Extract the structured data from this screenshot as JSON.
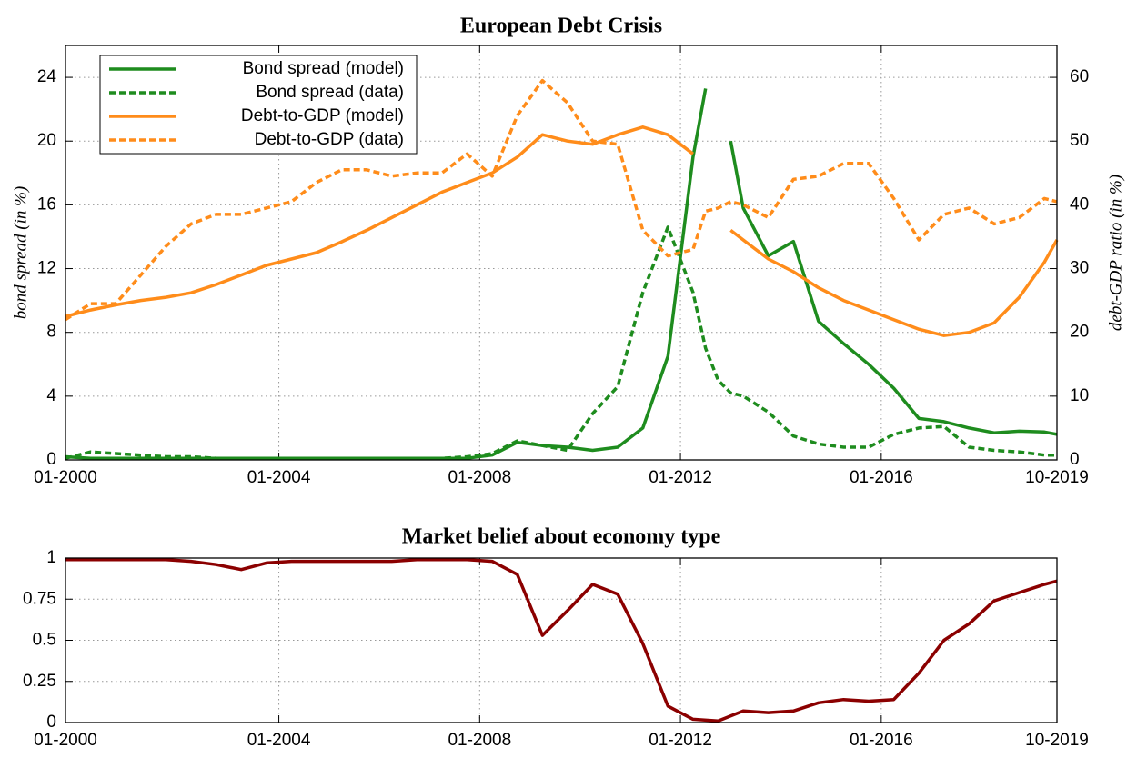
{
  "chart_data": [
    {
      "type": "line",
      "title": "European Debt Crisis",
      "ylabel": "bond spread (in %)",
      "y2label": "debt-GDP ratio (in %)",
      "x": [
        0,
        2,
        4,
        6,
        8,
        10,
        12,
        14,
        16,
        18,
        20,
        22,
        24,
        26,
        28,
        30,
        32,
        34,
        36,
        38,
        40,
        42,
        44,
        46,
        48,
        50,
        51,
        52,
        53,
        54,
        56,
        58,
        60,
        62,
        64,
        66,
        68,
        70,
        72,
        74,
        76,
        78,
        79
      ],
      "xlim": [
        0,
        79
      ],
      "xticks": [
        {
          "value": 0,
          "label": "01-2000"
        },
        {
          "value": 17,
          "label": "01-2004"
        },
        {
          "value": 33,
          "label": "01-2008"
        },
        {
          "value": 49,
          "label": "01-2012"
        },
        {
          "value": 65,
          "label": "01-2016"
        },
        {
          "value": 79,
          "label": "10-2019"
        }
      ],
      "ylim": [
        0,
        26
      ],
      "yticks": [
        0,
        4,
        8,
        12,
        16,
        20,
        24
      ],
      "y2lim": [
        0,
        65
      ],
      "y2ticks": [
        0,
        10,
        20,
        30,
        40,
        50,
        60
      ],
      "grid": true,
      "legend": "upper left",
      "series": [
        {
          "name": "Bond spread (model)",
          "color": "#1e8c1e",
          "dashed": false,
          "values": [
            0.2,
            0.1,
            0.1,
            0.1,
            0.1,
            0.1,
            0.1,
            0.1,
            0.1,
            0.1,
            0.1,
            0.1,
            0.1,
            0.1,
            0.1,
            0.1,
            0.1,
            0.3,
            1.1,
            0.9,
            0.8,
            0.6,
            0.8,
            2.0,
            6.5,
            19,
            23.3,
            null,
            20,
            15.8,
            12.8,
            13.7,
            8.7,
            7.3,
            6.0,
            4.5,
            2.6,
            2.4,
            2.0,
            1.7,
            1.8,
            1.75,
            1.6
          ]
        },
        {
          "name": "Bond spread (data)",
          "color": "#1e8c1e",
          "dashed": true,
          "values": [
            0.1,
            0.5,
            0.4,
            0.3,
            0.2,
            0.2,
            0.1,
            0.1,
            0.1,
            0.1,
            0.1,
            0.1,
            0.1,
            0.1,
            0.1,
            0.1,
            0.2,
            0.4,
            1.2,
            0.9,
            0.6,
            2.9,
            4.6,
            10.5,
            14.6,
            10.5,
            7,
            5,
            4.2,
            4.0,
            3.0,
            1.5,
            1.0,
            0.8,
            0.8,
            1.6,
            2.0,
            2.1,
            0.8,
            0.6,
            0.5,
            0.3,
            0.3
          ]
        },
        {
          "name": "Debt-to-GDP (model)",
          "color": "#ff8c1a",
          "dashed": false,
          "axis": "y2",
          "values": [
            22.5,
            23.5,
            24.3,
            25,
            25.5,
            26.2,
            27.5,
            29,
            30.5,
            31.5,
            32.5,
            34.2,
            36,
            38,
            40,
            42,
            43.5,
            45,
            47.5,
            51,
            50,
            49.5,
            51,
            52.2,
            51,
            48,
            null,
            null,
            36,
            34.5,
            31.5,
            29.5,
            27,
            25,
            23.5,
            22,
            20.5,
            19.5,
            20,
            21.5,
            25.5,
            31,
            34.5
          ]
        },
        {
          "name": "Debt-to-GDP (data)",
          "color": "#ff8c1a",
          "dashed": true,
          "axis": "y2",
          "values": [
            22,
            24.5,
            24.5,
            29,
            33.5,
            37,
            38.5,
            38.5,
            39.5,
            40.5,
            43.5,
            45.5,
            45.5,
            44.5,
            45,
            45,
            48,
            44.5,
            54,
            59.5,
            56,
            50,
            49.5,
            36,
            32,
            33,
            39,
            39.5,
            40.5,
            40,
            38,
            44,
            44.5,
            46.5,
            46.5,
            41,
            34.5,
            38.5,
            39.5,
            37,
            38,
            41,
            40.5
          ]
        }
      ]
    },
    {
      "type": "line",
      "title": "Market belief about economy type",
      "x": [
        0,
        2,
        4,
        6,
        8,
        10,
        12,
        14,
        16,
        18,
        20,
        22,
        24,
        26,
        28,
        30,
        32,
        34,
        36,
        38,
        40,
        42,
        44,
        46,
        48,
        50,
        52,
        54,
        56,
        58,
        60,
        62,
        64,
        66,
        68,
        70,
        72,
        74,
        76,
        78,
        79
      ],
      "xlim": [
        0,
        79
      ],
      "xticks": [
        {
          "value": 0,
          "label": "01-2000"
        },
        {
          "value": 17,
          "label": "01-2004"
        },
        {
          "value": 33,
          "label": "01-2008"
        },
        {
          "value": 49,
          "label": "01-2012"
        },
        {
          "value": 65,
          "label": "01-2016"
        },
        {
          "value": 79,
          "label": "10-2019"
        }
      ],
      "ylim": [
        0,
        1
      ],
      "yticks": [
        0,
        0.25,
        0.5,
        0.75,
        1
      ],
      "grid": true,
      "series": [
        {
          "color": "#8b0000",
          "dashed": false,
          "values": [
            0.99,
            0.99,
            0.99,
            0.99,
            0.99,
            0.98,
            0.96,
            0.93,
            0.97,
            0.98,
            0.98,
            0.98,
            0.98,
            0.98,
            0.99,
            0.99,
            0.99,
            0.98,
            0.9,
            0.53,
            0.68,
            0.84,
            0.78,
            0.48,
            0.1,
            0.02,
            0.01,
            0.07,
            0.06,
            0.07,
            0.12,
            0.14,
            0.13,
            0.14,
            0.3,
            0.5,
            0.6,
            0.74,
            0.79,
            0.84,
            0.86
          ]
        }
      ]
    }
  ]
}
